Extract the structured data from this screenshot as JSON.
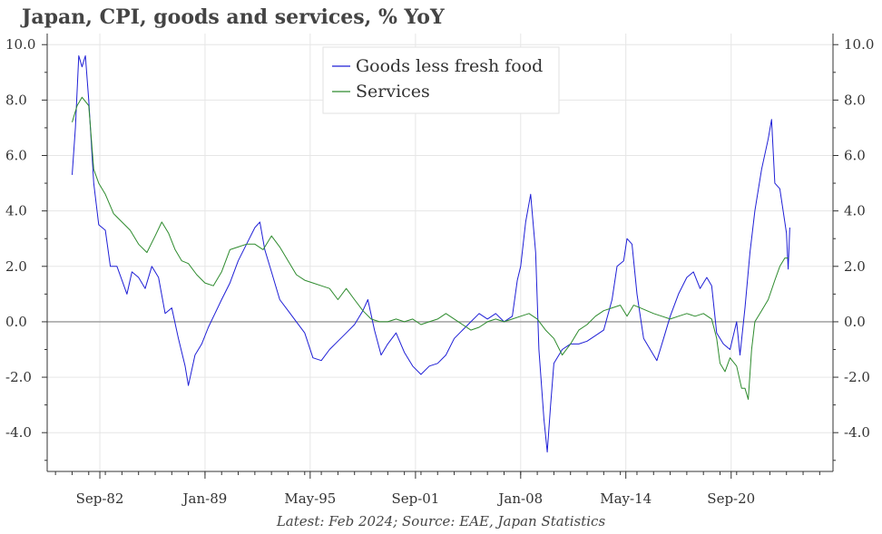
{
  "title": "Japan, CPI, goods and services, % YoY",
  "caption": "Latest: Feb 2024; Source: EAE, Japan Statistics",
  "colors": {
    "goods": "#1f1fd6",
    "services": "#2e8b2e",
    "zero": "#999999",
    "grid": "#e6e6e6"
  },
  "chart_data": {
    "type": "line",
    "ylim": [
      -5.4,
      10.4
    ],
    "yticks": [
      -4,
      -2,
      0,
      2,
      4,
      6,
      8,
      10
    ],
    "ytick_labels": [
      "-4.0",
      "-2.0",
      "0.0",
      "2.0",
      "4.0",
      "6.0",
      "8.0",
      "10.0"
    ],
    "xlim": [
      1979.5,
      2026.8
    ],
    "xticks": [
      1982.67,
      1989.0,
      1995.33,
      2001.67,
      2008.0,
      2014.33,
      2020.67
    ],
    "xtick_labels": [
      "Sep-82",
      "Jan-89",
      "May-95",
      "Sep-01",
      "Jan-08",
      "May-14",
      "Sep-20"
    ],
    "grid": true,
    "legend": "top-center",
    "series": [
      {
        "name": "Goods less fresh food",
        "color": "#1f1fd6",
        "points": [
          [
            1981.0,
            5.3
          ],
          [
            1981.2,
            7.0
          ],
          [
            1981.4,
            9.6
          ],
          [
            1981.6,
            9.2
          ],
          [
            1981.8,
            9.6
          ],
          [
            1982.0,
            8.0
          ],
          [
            1982.3,
            5.0
          ],
          [
            1982.6,
            3.5
          ],
          [
            1983.0,
            3.3
          ],
          [
            1983.3,
            2.0
          ],
          [
            1983.7,
            2.0
          ],
          [
            1984.0,
            1.5
          ],
          [
            1984.3,
            1.0
          ],
          [
            1984.6,
            1.8
          ],
          [
            1985.0,
            1.6
          ],
          [
            1985.4,
            1.2
          ],
          [
            1985.8,
            2.0
          ],
          [
            1986.2,
            1.6
          ],
          [
            1986.6,
            0.3
          ],
          [
            1987.0,
            0.5
          ],
          [
            1987.4,
            -0.6
          ],
          [
            1987.8,
            -1.6
          ],
          [
            1988.0,
            -2.3
          ],
          [
            1988.4,
            -1.2
          ],
          [
            1988.8,
            -0.8
          ],
          [
            1989.2,
            -0.2
          ],
          [
            1989.6,
            0.3
          ],
          [
            1990.0,
            0.8
          ],
          [
            1990.5,
            1.4
          ],
          [
            1991.0,
            2.2
          ],
          [
            1991.5,
            2.8
          ],
          [
            1992.0,
            3.4
          ],
          [
            1992.3,
            3.6
          ],
          [
            1992.6,
            2.6
          ],
          [
            1993.0,
            1.8
          ],
          [
            1993.5,
            0.8
          ],
          [
            1994.0,
            0.4
          ],
          [
            1994.5,
            0.0
          ],
          [
            1995.0,
            -0.4
          ],
          [
            1995.5,
            -1.3
          ],
          [
            1996.0,
            -1.4
          ],
          [
            1996.5,
            -1.0
          ],
          [
            1997.0,
            -0.7
          ],
          [
            1997.5,
            -0.4
          ],
          [
            1998.0,
            -0.1
          ],
          [
            1998.5,
            0.4
          ],
          [
            1998.8,
            0.8
          ],
          [
            1999.2,
            -0.3
          ],
          [
            1999.6,
            -1.2
          ],
          [
            2000.0,
            -0.8
          ],
          [
            2000.5,
            -0.4
          ],
          [
            2001.0,
            -1.1
          ],
          [
            2001.5,
            -1.6
          ],
          [
            2002.0,
            -1.9
          ],
          [
            2002.5,
            -1.6
          ],
          [
            2003.0,
            -1.5
          ],
          [
            2003.5,
            -1.2
          ],
          [
            2004.0,
            -0.6
          ],
          [
            2004.5,
            -0.3
          ],
          [
            2005.0,
            0.0
          ],
          [
            2005.5,
            0.3
          ],
          [
            2006.0,
            0.1
          ],
          [
            2006.5,
            0.3
          ],
          [
            2007.0,
            0.0
          ],
          [
            2007.5,
            0.2
          ],
          [
            2007.8,
            1.5
          ],
          [
            2008.0,
            2.0
          ],
          [
            2008.3,
            3.6
          ],
          [
            2008.6,
            4.6
          ],
          [
            2008.9,
            2.5
          ],
          [
            2009.1,
            -1.0
          ],
          [
            2009.4,
            -3.5
          ],
          [
            2009.6,
            -4.7
          ],
          [
            2009.8,
            -3.0
          ],
          [
            2010.0,
            -1.5
          ],
          [
            2010.5,
            -1.0
          ],
          [
            2011.0,
            -0.8
          ],
          [
            2011.5,
            -0.8
          ],
          [
            2012.0,
            -0.7
          ],
          [
            2012.5,
            -0.5
          ],
          [
            2013.0,
            -0.3
          ],
          [
            2013.5,
            0.8
          ],
          [
            2013.8,
            2.0
          ],
          [
            2014.2,
            2.2
          ],
          [
            2014.4,
            3.0
          ],
          [
            2014.7,
            2.8
          ],
          [
            2015.0,
            1.0
          ],
          [
            2015.4,
            -0.6
          ],
          [
            2015.8,
            -1.0
          ],
          [
            2016.2,
            -1.4
          ],
          [
            2016.6,
            -0.6
          ],
          [
            2017.0,
            0.2
          ],
          [
            2017.5,
            1.0
          ],
          [
            2018.0,
            1.6
          ],
          [
            2018.4,
            1.8
          ],
          [
            2018.8,
            1.2
          ],
          [
            2019.2,
            1.6
          ],
          [
            2019.5,
            1.3
          ],
          [
            2019.8,
            -0.4
          ],
          [
            2020.2,
            -0.8
          ],
          [
            2020.6,
            -1.0
          ],
          [
            2021.0,
            0.0
          ],
          [
            2021.2,
            -1.2
          ],
          [
            2021.5,
            0.5
          ],
          [
            2021.8,
            2.5
          ],
          [
            2022.1,
            4.0
          ],
          [
            2022.5,
            5.5
          ],
          [
            2022.9,
            6.6
          ],
          [
            2023.1,
            7.3
          ],
          [
            2023.3,
            5.0
          ],
          [
            2023.6,
            4.8
          ],
          [
            2023.9,
            3.6
          ],
          [
            2024.0,
            3.2
          ],
          [
            2024.1,
            1.9
          ],
          [
            2024.2,
            3.4
          ]
        ]
      },
      {
        "name": "Services",
        "color": "#2e8b2e",
        "points": [
          [
            1981.0,
            7.2
          ],
          [
            1981.3,
            7.8
          ],
          [
            1981.6,
            8.1
          ],
          [
            1982.0,
            7.8
          ],
          [
            1982.3,
            5.5
          ],
          [
            1982.6,
            5.0
          ],
          [
            1983.0,
            4.6
          ],
          [
            1983.5,
            3.9
          ],
          [
            1984.0,
            3.6
          ],
          [
            1984.5,
            3.3
          ],
          [
            1985.0,
            2.8
          ],
          [
            1985.5,
            2.5
          ],
          [
            1986.0,
            3.1
          ],
          [
            1986.4,
            3.6
          ],
          [
            1986.8,
            3.2
          ],
          [
            1987.2,
            2.6
          ],
          [
            1987.6,
            2.2
          ],
          [
            1988.0,
            2.1
          ],
          [
            1988.5,
            1.7
          ],
          [
            1989.0,
            1.4
          ],
          [
            1989.5,
            1.3
          ],
          [
            1990.0,
            1.8
          ],
          [
            1990.5,
            2.6
          ],
          [
            1991.0,
            2.7
          ],
          [
            1991.5,
            2.8
          ],
          [
            1992.0,
            2.8
          ],
          [
            1992.5,
            2.6
          ],
          [
            1993.0,
            3.1
          ],
          [
            1993.5,
            2.7
          ],
          [
            1994.0,
            2.2
          ],
          [
            1994.5,
            1.7
          ],
          [
            1995.0,
            1.5
          ],
          [
            1995.5,
            1.4
          ],
          [
            1996.0,
            1.3
          ],
          [
            1996.5,
            1.2
          ],
          [
            1997.0,
            0.8
          ],
          [
            1997.5,
            1.2
          ],
          [
            1998.0,
            0.8
          ],
          [
            1998.5,
            0.4
          ],
          [
            1999.0,
            0.1
          ],
          [
            1999.5,
            0.0
          ],
          [
            2000.0,
            0.0
          ],
          [
            2000.5,
            0.1
          ],
          [
            2001.0,
            0.0
          ],
          [
            2001.5,
            0.1
          ],
          [
            2002.0,
            -0.1
          ],
          [
            2002.5,
            0.0
          ],
          [
            2003.0,
            0.1
          ],
          [
            2003.5,
            0.3
          ],
          [
            2004.0,
            0.1
          ],
          [
            2004.5,
            -0.1
          ],
          [
            2005.0,
            -0.3
          ],
          [
            2005.5,
            -0.2
          ],
          [
            2006.0,
            0.0
          ],
          [
            2006.5,
            0.1
          ],
          [
            2007.0,
            0.0
          ],
          [
            2007.5,
            0.1
          ],
          [
            2008.0,
            0.2
          ],
          [
            2008.5,
            0.3
          ],
          [
            2009.0,
            0.1
          ],
          [
            2009.5,
            -0.3
          ],
          [
            2010.0,
            -0.6
          ],
          [
            2010.5,
            -1.2
          ],
          [
            2011.0,
            -0.8
          ],
          [
            2011.5,
            -0.3
          ],
          [
            2012.0,
            -0.1
          ],
          [
            2012.5,
            0.2
          ],
          [
            2013.0,
            0.4
          ],
          [
            2013.5,
            0.5
          ],
          [
            2014.0,
            0.6
          ],
          [
            2014.4,
            0.2
          ],
          [
            2014.8,
            0.6
          ],
          [
            2015.2,
            0.5
          ],
          [
            2015.6,
            0.4
          ],
          [
            2016.0,
            0.3
          ],
          [
            2016.5,
            0.2
          ],
          [
            2017.0,
            0.1
          ],
          [
            2017.5,
            0.2
          ],
          [
            2018.0,
            0.3
          ],
          [
            2018.5,
            0.2
          ],
          [
            2019.0,
            0.3
          ],
          [
            2019.5,
            0.1
          ],
          [
            2019.8,
            -0.6
          ],
          [
            2020.0,
            -1.5
          ],
          [
            2020.3,
            -1.8
          ],
          [
            2020.6,
            -1.3
          ],
          [
            2021.0,
            -1.6
          ],
          [
            2021.3,
            -2.4
          ],
          [
            2021.5,
            -2.4
          ],
          [
            2021.7,
            -2.8
          ],
          [
            2021.9,
            -1.0
          ],
          [
            2022.1,
            0.0
          ],
          [
            2022.5,
            0.4
          ],
          [
            2022.9,
            0.8
          ],
          [
            2023.3,
            1.5
          ],
          [
            2023.6,
            2.0
          ],
          [
            2023.9,
            2.3
          ],
          [
            2024.1,
            2.3
          ]
        ]
      }
    ]
  }
}
